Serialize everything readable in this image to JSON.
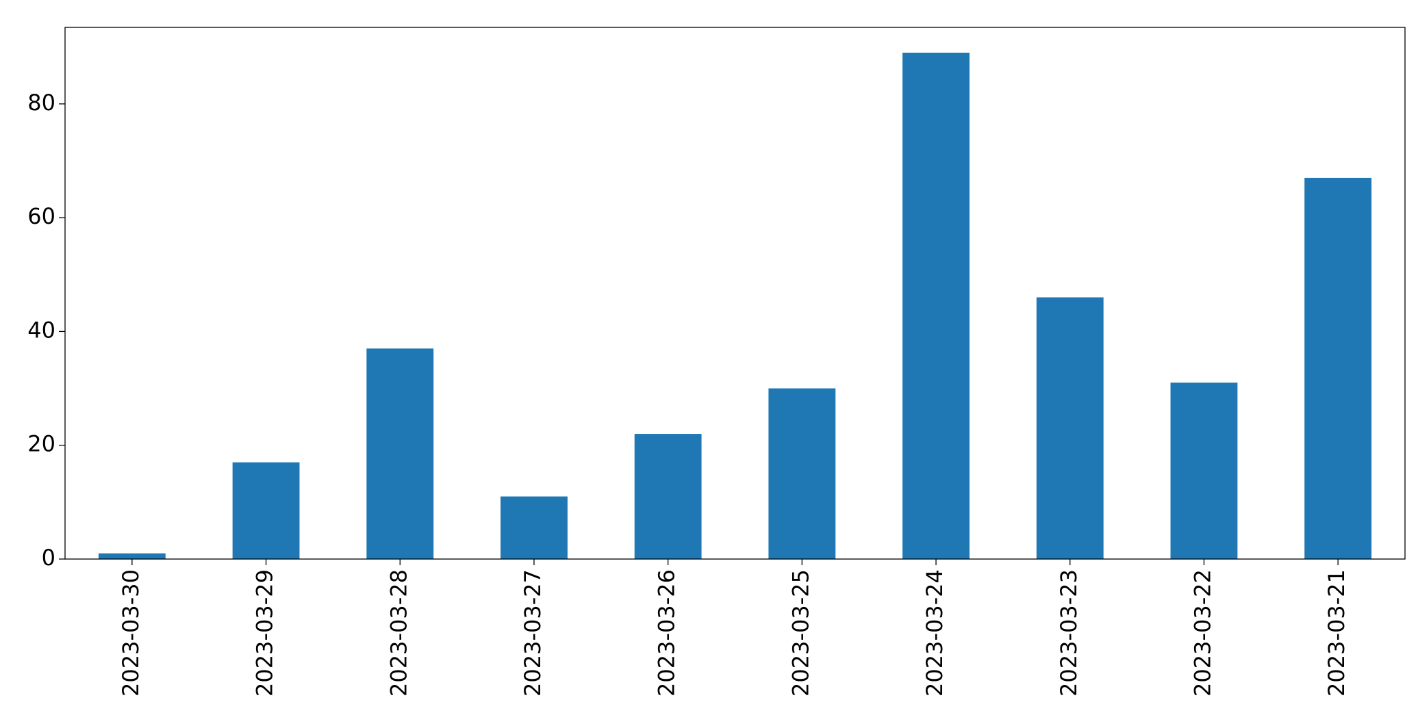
{
  "chart_data": {
    "type": "bar",
    "categories": [
      "2023-03-30",
      "2023-03-29",
      "2023-03-28",
      "2023-03-27",
      "2023-03-26",
      "2023-03-25",
      "2023-03-24",
      "2023-03-23",
      "2023-03-22",
      "2023-03-21"
    ],
    "values": [
      1,
      17,
      37,
      11,
      22,
      30,
      89,
      46,
      31,
      67
    ],
    "color": "#1f77b4",
    "ylim": [
      0,
      93.45
    ],
    "yticks": [
      0,
      20,
      40,
      60,
      80
    ],
    "grid": false
  }
}
